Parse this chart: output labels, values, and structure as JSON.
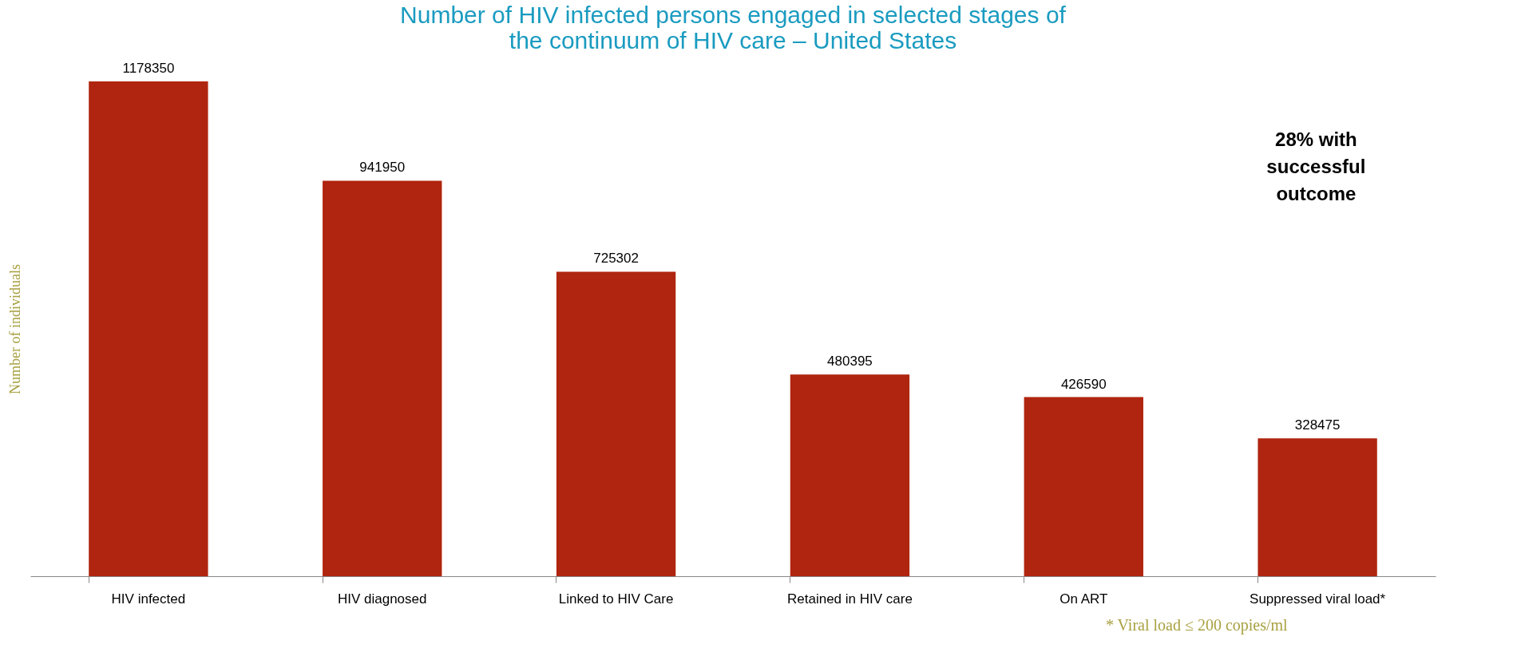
{
  "chart_data": {
    "type": "bar",
    "title": "Number of HIV infected persons engaged in selected stages of the continuum of HIV care – United States",
    "ylabel": "Number of individuals",
    "categories": [
      "HIV infected",
      "HIV diagnosed",
      "Linked to HIV Care",
      "Retained in HIV care",
      "On ART",
      "Suppressed viral load*"
    ],
    "values": [
      1178350,
      941950,
      725302,
      480395,
      426590,
      328475
    ],
    "color": "#b0250f",
    "data_labels": true,
    "tick_labels": "x",
    "grid": false,
    "annotations": [
      "28% with successful outcome",
      "* Viral load ≤ 200 copies/ml"
    ]
  }
}
